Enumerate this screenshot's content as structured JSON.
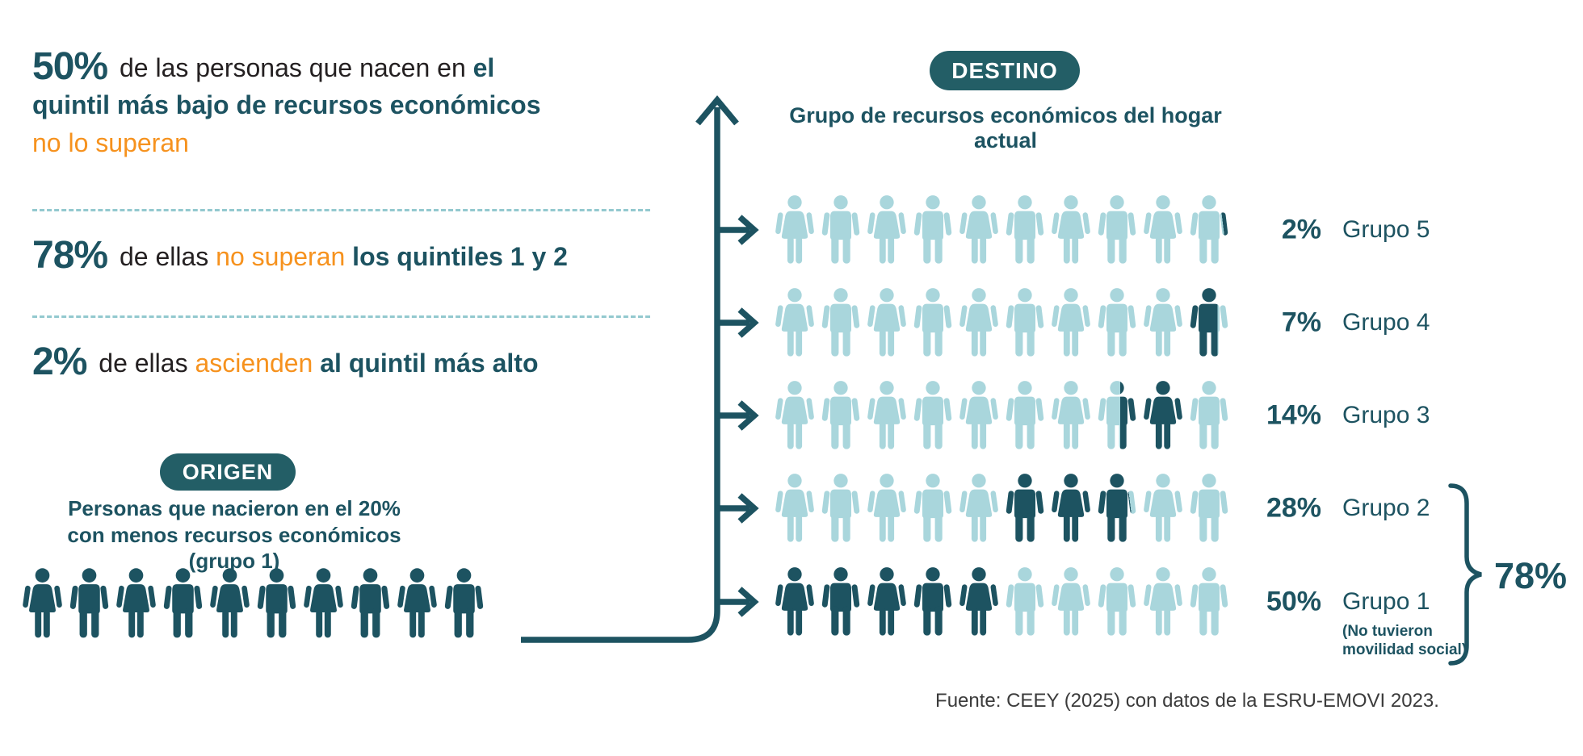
{
  "colors": {
    "dark": "#1d5361",
    "light": "#a9d6dc",
    "orange": "#f6921e",
    "ink": "#242021",
    "dash": "#93c9cf",
    "badge": "#235e66",
    "footer_ink": "#3b3b3b"
  },
  "stats": [
    {
      "value": "50%",
      "segments": [
        {
          "style": "ink",
          "text": " de las personas que nacen en "
        },
        {
          "style": "teal",
          "text": "el quintil más bajo de recursos económicos "
        },
        {
          "style": "orange",
          "text": "no lo superan"
        }
      ]
    },
    {
      "value": "78%",
      "segments": [
        {
          "style": "ink",
          "text": " de ellas "
        },
        {
          "style": "orange",
          "text": "no superan"
        },
        {
          "style": "teal",
          "text": " los quintiles 1 y 2"
        }
      ]
    },
    {
      "value": "2%",
      "segments": [
        {
          "style": "ink",
          "text": " de ellas "
        },
        {
          "style": "orange",
          "text": "ascienden"
        },
        {
          "style": "teal",
          "text": " al quintil más alto"
        }
      ]
    }
  ],
  "origin": {
    "badge": "ORIGEN",
    "caption": "Personas que nacieron en el 20% con menos recursos económicos (grupo 1)",
    "icons": [
      {
        "g": "w",
        "f": "D"
      },
      {
        "g": "m",
        "f": "D"
      },
      {
        "g": "w",
        "f": "D"
      },
      {
        "g": "m",
        "f": "D"
      },
      {
        "g": "w",
        "f": "D"
      },
      {
        "g": "m",
        "f": "D"
      },
      {
        "g": "w",
        "f": "D"
      },
      {
        "g": "m",
        "f": "D"
      },
      {
        "g": "w",
        "f": "D"
      },
      {
        "g": "m",
        "f": "D"
      }
    ]
  },
  "destination": {
    "badge": "DESTINO",
    "caption": "Grupo de recursos económicos del hogar actual",
    "rows": [
      {
        "group": "Grupo 5",
        "pct": "2%",
        "icons": [
          {
            "g": "w",
            "f": "L"
          },
          {
            "g": "m",
            "f": "L"
          },
          {
            "g": "w",
            "f": "L"
          },
          {
            "g": "m",
            "f": "L"
          },
          {
            "g": "w",
            "f": "L"
          },
          {
            "g": "m",
            "f": "L"
          },
          {
            "g": "w",
            "f": "L"
          },
          {
            "g": "m",
            "f": "L"
          },
          {
            "g": "w",
            "f": "L"
          },
          {
            "g": "m",
            "f": "G1"
          }
        ]
      },
      {
        "group": "Grupo 4",
        "pct": "7%",
        "icons": [
          {
            "g": "w",
            "f": "L"
          },
          {
            "g": "m",
            "f": "L"
          },
          {
            "g": "w",
            "f": "L"
          },
          {
            "g": "m",
            "f": "L"
          },
          {
            "g": "w",
            "f": "L"
          },
          {
            "g": "m",
            "f": "L"
          },
          {
            "g": "w",
            "f": "L"
          },
          {
            "g": "m",
            "f": "L"
          },
          {
            "g": "w",
            "f": "L"
          },
          {
            "g": "m",
            "f": "G2"
          }
        ]
      },
      {
        "group": "Grupo 3",
        "pct": "14%",
        "icons": [
          {
            "g": "w",
            "f": "L"
          },
          {
            "g": "m",
            "f": "L"
          },
          {
            "g": "w",
            "f": "L"
          },
          {
            "g": "m",
            "f": "L"
          },
          {
            "g": "w",
            "f": "L"
          },
          {
            "g": "m",
            "f": "L"
          },
          {
            "g": "w",
            "f": "L"
          },
          {
            "g": "m",
            "f": "G3"
          },
          {
            "g": "w",
            "f": "D"
          },
          {
            "g": "m",
            "f": "L"
          }
        ]
      },
      {
        "group": "Grupo 2",
        "pct": "28%",
        "icons": [
          {
            "g": "w",
            "f": "L"
          },
          {
            "g": "m",
            "f": "L"
          },
          {
            "g": "w",
            "f": "L"
          },
          {
            "g": "m",
            "f": "L"
          },
          {
            "g": "w",
            "f": "L"
          },
          {
            "g": "m",
            "f": "D"
          },
          {
            "g": "w",
            "f": "D"
          },
          {
            "g": "m",
            "f": "G4"
          },
          {
            "g": "w",
            "f": "L"
          },
          {
            "g": "m",
            "f": "L"
          }
        ]
      },
      {
        "group": "Grupo 1",
        "pct": "50%",
        "note": "(No tuvieron movilidad social)",
        "icons": [
          {
            "g": "w",
            "f": "D"
          },
          {
            "g": "m",
            "f": "D"
          },
          {
            "g": "w",
            "f": "D"
          },
          {
            "g": "m",
            "f": "D"
          },
          {
            "g": "w",
            "f": "D"
          },
          {
            "g": "m",
            "f": "L"
          },
          {
            "g": "w",
            "f": "L"
          },
          {
            "g": "m",
            "f": "L"
          },
          {
            "g": "w",
            "f": "L"
          },
          {
            "g": "m",
            "f": "L"
          }
        ]
      }
    ],
    "aggregate": {
      "label": "78%",
      "applies_to": [
        "Grupo 2",
        "Grupo 1"
      ]
    }
  },
  "footer": {
    "source": "Fuente: CEEY (2025) con datos de la ESRU-EMOVI 2023."
  },
  "chart_data": {
    "type": "bar",
    "title": "Destino: Grupo de recursos económicos del hogar actual (origen: grupo 1)",
    "categories": [
      "Grupo 5",
      "Grupo 4",
      "Grupo 3",
      "Grupo 2",
      "Grupo 1"
    ],
    "values": [
      2,
      7,
      14,
      28,
      50
    ],
    "unit": "%",
    "xlabel": "",
    "ylabel": "",
    "ylim": [
      0,
      100
    ],
    "icons_per_row": 10,
    "annotations": [
      {
        "text": "78%",
        "meaning": "suma de Grupo 1 y Grupo 2"
      },
      {
        "text": "(No tuvieron movilidad social)",
        "meaning": "nota de Grupo 1"
      },
      {
        "text": "50% de las personas que nacen en el quintil más bajo de recursos económicos no lo superan"
      },
      {
        "text": "78% de ellas no superan los quintiles 1 y 2"
      },
      {
        "text": "2% de ellas ascienden al quintil más alto"
      }
    ]
  }
}
